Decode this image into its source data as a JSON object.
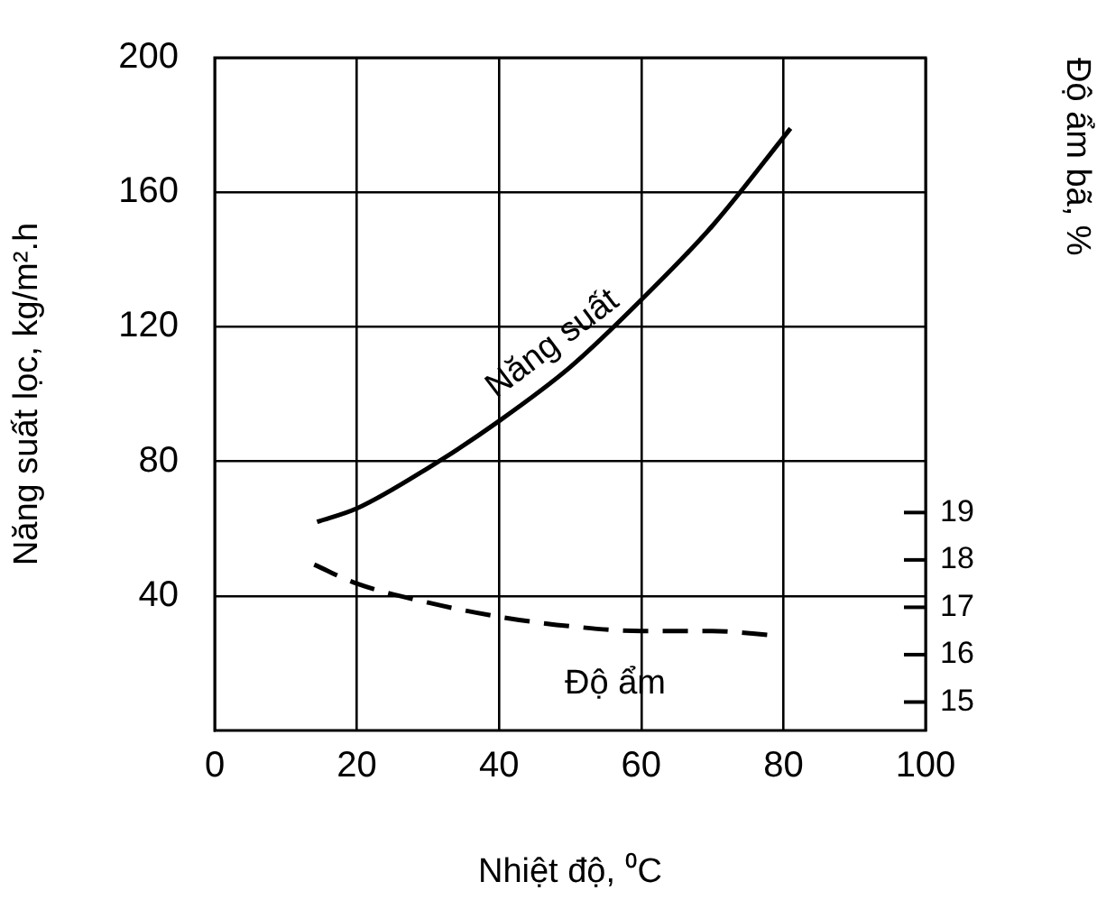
{
  "chart_data": {
    "type": "line",
    "xlabel": "Nhiệt độ, ⁰C",
    "ylabel": "Năng suất lọc, kg/m².h",
    "y2label": "Độ ẩm bã, %",
    "xlim": [
      0,
      100
    ],
    "xticks": [
      0,
      20,
      40,
      60,
      80,
      100
    ],
    "ylim": [
      0,
      200
    ],
    "yticks": [
      40,
      80,
      120,
      160,
      200
    ],
    "y2lim": [
      14.4,
      28.6
    ],
    "y2ticks": [
      15,
      16,
      17,
      18,
      19
    ],
    "grid": true,
    "legend": false,
    "marker": "none",
    "series": [
      {
        "name": "Năng suất",
        "color": "#000000",
        "line_style": "solid",
        "x": [
          14.4,
          20,
          30,
          40,
          50,
          60,
          70,
          81
        ],
        "values": [
          62,
          66,
          78,
          92,
          108,
          128,
          150,
          179
        ]
      },
      {
        "name": "Độ ẩm",
        "color": "#000000",
        "line_style": "dashed",
        "axis": "y2",
        "x": [
          14,
          20,
          30,
          40,
          50,
          60,
          70,
          79
        ],
        "values": [
          17.9,
          17.5,
          17.1,
          16.8,
          16.6,
          16.5,
          16.5,
          16.4
        ]
      }
    ]
  }
}
